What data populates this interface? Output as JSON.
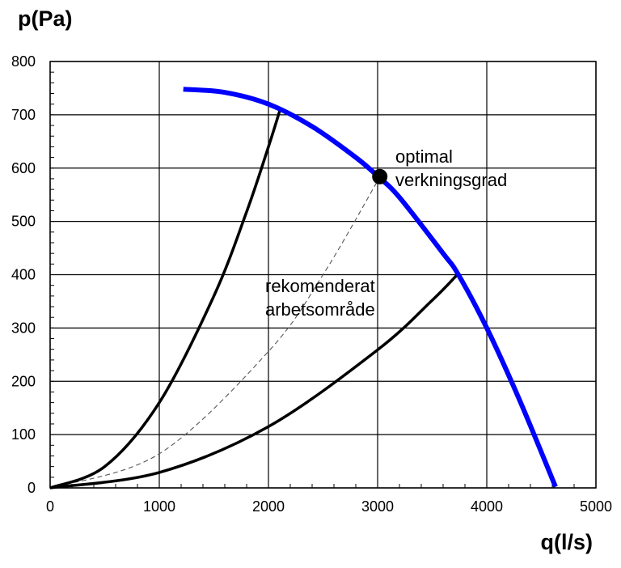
{
  "chart_data": {
    "type": "line",
    "xlabel": "q(l/s)",
    "ylabel": "p(Pa)",
    "xlim": [
      0,
      5000
    ],
    "ylim": [
      0,
      800
    ],
    "x_ticks": [
      0,
      1000,
      2000,
      3000,
      4000,
      5000
    ],
    "y_ticks": [
      0,
      100,
      200,
      300,
      400,
      500,
      600,
      700,
      800
    ],
    "grid": true,
    "colors": {
      "fan_curve": "#0000ff",
      "system_curves": "#000000",
      "optimal_curve": "#555555"
    },
    "series": [
      {
        "style": "thick-blue",
        "x": [
          1220,
          1600,
          2000,
          2400,
          2800,
          3000,
          3200,
          3600,
          3740,
          4000,
          4300,
          4630
        ],
        "y": [
          748,
          742,
          720,
          678,
          620,
          585,
          545,
          440,
          400,
          300,
          165,
          2
        ]
      },
      {
        "style": "black-steep",
        "x": [
          0,
          500,
          1000,
          1500,
          1800,
          2000,
          2110
        ],
        "y": [
          0,
          40,
          160,
          360,
          518,
          640,
          712
        ]
      },
      {
        "style": "black-shallow",
        "x": [
          0,
          1000,
          2000,
          3000,
          3500,
          3730
        ],
        "y": [
          0,
          29,
          115,
          259,
          352,
          400
        ]
      },
      {
        "style": "dashed-gray",
        "x": [
          0,
          1000,
          2000,
          2500,
          3000,
          3020
        ],
        "y": [
          0,
          64,
          256,
          400,
          576,
          584
        ]
      }
    ],
    "points": [
      {
        "x": 3020,
        "y": 584,
        "label": "optimal verkningsgrad"
      }
    ],
    "annotations": [
      {
        "lines": [
          "optimal",
          "verkningsgrad"
        ]
      },
      {
        "lines": [
          "rekomenderat",
          "arbetsområde"
        ]
      }
    ]
  }
}
